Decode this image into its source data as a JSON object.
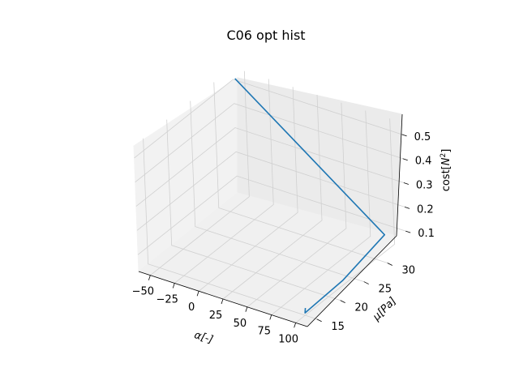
{
  "chart_data": {
    "type": "line3d",
    "title": "C06 opt hist",
    "xlabel": "α[-]",
    "ylabel": "μ[Pa]",
    "zlabel_main": "cost[",
    "zlabel_sup": "N",
    "zlabel_exp": "2",
    "zlabel_close": "]",
    "x_ticks": [
      "−50",
      "−25",
      "0",
      "25",
      "50",
      "75",
      "100"
    ],
    "y_ticks": [
      "15",
      "20",
      "25",
      "30"
    ],
    "z_ticks": [
      "0.1",
      "0.2",
      "0.3",
      "0.4",
      "0.5"
    ],
    "grid": true,
    "series": [
      {
        "color": "#1f77b4",
        "points": [
          {
            "x": -50,
            "y": 32,
            "z": 0.55
          },
          {
            "x": 100,
            "y": 32,
            "z": 0.1
          },
          {
            "x": 100,
            "y": 23,
            "z": 0.05
          },
          {
            "x": 100,
            "y": 15,
            "z": 0.04
          },
          {
            "x": 98,
            "y": 15.5,
            "z": 0.05
          }
        ]
      }
    ]
  }
}
